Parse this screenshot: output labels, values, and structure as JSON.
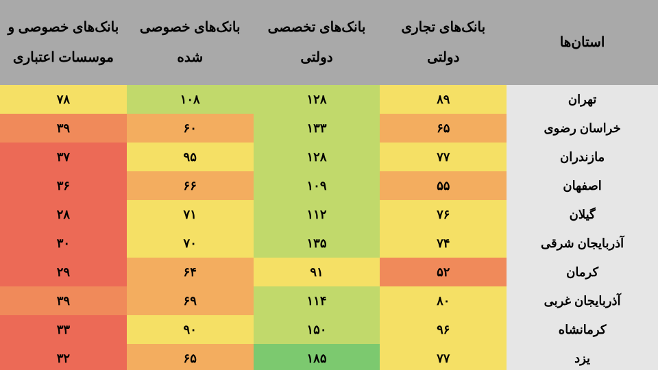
{
  "header_bg": "#a9a9a9",
  "header_fontsize": 20,
  "body_fontsize": 18,
  "province_col_bg": "#e6e6e6",
  "text_color": "#000000",
  "columns": [
    "استان‌ها",
    "بانک‌های تجاری دولتی",
    "بانک‌های تخصصی دولتی",
    "بانک‌های خصوصی شده",
    "بانک‌های خصوصی و موسسات اعتباری"
  ],
  "persian_digits": [
    "۰",
    "۱",
    "۲",
    "۳",
    "۴",
    "۵",
    "۶",
    "۷",
    "۸",
    "۹"
  ],
  "cell_colors": {
    "green": "#7cc96f",
    "yellowgreen": "#c1d96b",
    "yellow": "#f5e065",
    "orange": "#f3ad5f",
    "orangeRed": "#f08a5a",
    "red": "#ec6a56"
  },
  "rows": [
    {
      "province": "تهران",
      "vals": [
        89,
        128,
        108,
        78
      ],
      "colors": [
        "yellow",
        "yellowgreen",
        "yellowgreen",
        "yellow"
      ]
    },
    {
      "province": "خراسان رضوی",
      "vals": [
        65,
        133,
        60,
        39
      ],
      "colors": [
        "orange",
        "yellowgreen",
        "orange",
        "orangeRed"
      ]
    },
    {
      "province": "مازندران",
      "vals": [
        77,
        128,
        95,
        37
      ],
      "colors": [
        "yellow",
        "yellowgreen",
        "yellow",
        "red"
      ]
    },
    {
      "province": "اصفهان",
      "vals": [
        55,
        109,
        66,
        36
      ],
      "colors": [
        "orange",
        "yellowgreen",
        "orange",
        "red"
      ]
    },
    {
      "province": "گیلان",
      "vals": [
        76,
        112,
        71,
        28
      ],
      "colors": [
        "yellow",
        "yellowgreen",
        "yellow",
        "red"
      ]
    },
    {
      "province": "آذربایجان شرقی",
      "vals": [
        74,
        135,
        70,
        30
      ],
      "colors": [
        "yellow",
        "yellowgreen",
        "yellow",
        "red"
      ]
    },
    {
      "province": "کرمان",
      "vals": [
        52,
        91,
        64,
        29
      ],
      "colors": [
        "orangeRed",
        "yellow",
        "orange",
        "red"
      ]
    },
    {
      "province": "آذربایجان غربی",
      "vals": [
        80,
        114,
        69,
        39
      ],
      "colors": [
        "yellow",
        "yellowgreen",
        "orange",
        "orangeRed"
      ]
    },
    {
      "province": "کرمانشاه",
      "vals": [
        96,
        150,
        90,
        33
      ],
      "colors": [
        "yellow",
        "yellowgreen",
        "yellow",
        "red"
      ]
    },
    {
      "province": "یزد",
      "vals": [
        77,
        185,
        65,
        32
      ],
      "colors": [
        "yellow",
        "green",
        "orange",
        "red"
      ]
    }
  ]
}
